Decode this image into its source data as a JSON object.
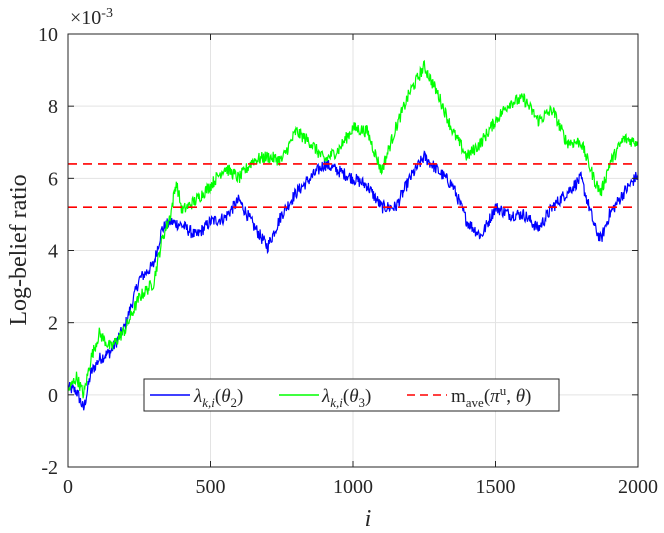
{
  "chart_data": {
    "type": "line",
    "xlabel": "i",
    "ylabel": "Log-belief ratio",
    "y_exponent": "×10",
    "y_exponent_power": "-3",
    "xlim": [
      0,
      2000
    ],
    "ylim": [
      -2,
      10
    ],
    "x_ticks": [
      "0",
      "500",
      "1000",
      "1500",
      "2000"
    ],
    "y_ticks": [
      "-2",
      "0",
      "2",
      "4",
      "6",
      "8",
      "10"
    ],
    "grid": true,
    "legend_placement": "bottom-center",
    "colors": {
      "blue": "#0000ff",
      "green": "#00ff00",
      "red": "#ff0000"
    },
    "series": [
      {
        "name": "λ_{k,i}(θ_2)",
        "color": "#0000ff",
        "style": "solid",
        "x": [
          0,
          30,
          55,
          80,
          110,
          150,
          200,
          250,
          300,
          330,
          360,
          400,
          450,
          500,
          550,
          600,
          650,
          700,
          750,
          800,
          850,
          900,
          950,
          1000,
          1050,
          1100,
          1150,
          1200,
          1250,
          1300,
          1350,
          1400,
          1450,
          1500,
          1550,
          1600,
          1650,
          1700,
          1750,
          1800,
          1850,
          1870,
          1900,
          1950,
          2000
        ],
        "y": [
          0.2,
          0.1,
          -0.4,
          0.6,
          1.0,
          1.2,
          1.9,
          3.2,
          3.6,
          4.6,
          4.8,
          4.7,
          4.4,
          4.8,
          4.9,
          5.4,
          4.7,
          4.1,
          5.0,
          5.6,
          6.0,
          6.4,
          6.2,
          6.0,
          5.8,
          5.2,
          5.2,
          6.0,
          6.6,
          6.2,
          5.8,
          4.8,
          4.4,
          5.2,
          5.0,
          5.0,
          4.6,
          5.2,
          5.6,
          6.0,
          4.6,
          4.3,
          5.0,
          5.6,
          6.1
        ]
      },
      {
        "name": "λ_{k,i}(θ_3)",
        "color": "#00ff00",
        "style": "solid",
        "x": [
          0,
          30,
          55,
          80,
          110,
          150,
          200,
          250,
          300,
          330,
          360,
          380,
          400,
          450,
          500,
          550,
          600,
          650,
          700,
          750,
          800,
          850,
          900,
          950,
          1000,
          1050,
          1100,
          1150,
          1200,
          1250,
          1300,
          1350,
          1400,
          1450,
          1500,
          1550,
          1600,
          1650,
          1700,
          1750,
          1800,
          1850,
          1870,
          1900,
          1950,
          2000
        ],
        "y": [
          0.1,
          0.5,
          0.0,
          1.0,
          1.7,
          1.3,
          1.8,
          2.7,
          3.1,
          4.3,
          5.0,
          5.9,
          5.1,
          5.4,
          5.8,
          6.3,
          6.0,
          6.5,
          6.6,
          6.5,
          7.3,
          7.0,
          6.5,
          6.8,
          7.4,
          7.3,
          6.2,
          7.4,
          8.4,
          9.1,
          8.3,
          7.3,
          6.6,
          7.0,
          7.6,
          8.1,
          8.2,
          7.6,
          7.9,
          7.0,
          7.0,
          5.9,
          5.6,
          6.4,
          7.1,
          7.0
        ]
      },
      {
        "name": "m_{ave}(π^u, θ)",
        "color": "#ff0000",
        "style": "dashed",
        "x": [
          0,
          2000
        ],
        "y": [
          6.4,
          6.4
        ]
      },
      {
        "color": "#ff0000",
        "style": "dashed",
        "x": [
          0,
          2000
        ],
        "y": [
          5.2,
          5.2
        ]
      }
    ]
  }
}
